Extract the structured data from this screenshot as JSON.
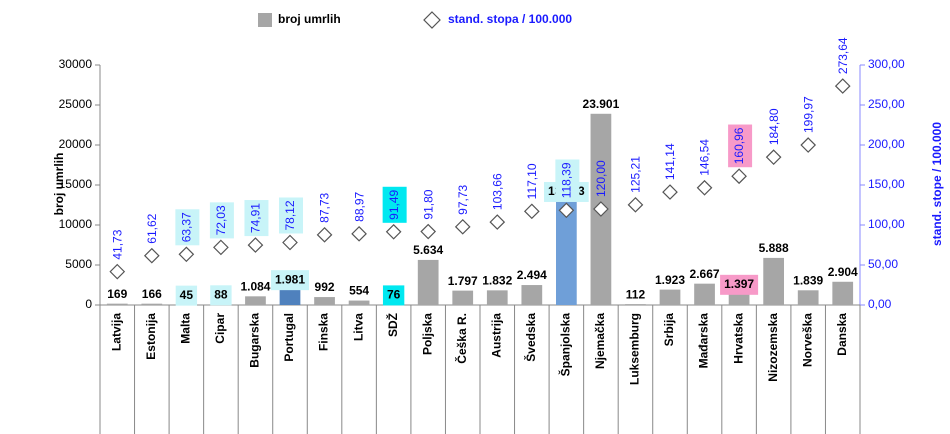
{
  "chart_data": {
    "type": "bar_line",
    "categories": [
      "Latvija",
      "Estonija",
      "Malta",
      "Cipar",
      "Bugarska",
      "Portugal",
      "Finska",
      "Litva",
      "SDŽ",
      "Poljska",
      "Češka R.",
      "Austrija",
      "Švedska",
      "Španjolska",
      "Njemačka",
      "Luksemburg",
      "Srbija",
      "Mađarska",
      "Hrvatska",
      "Nizozemska",
      "Norveška",
      "Danska"
    ],
    "series": [
      {
        "name": "broj umrlih",
        "color": "#a6a6a6",
        "bar_colors": [
          null,
          null,
          null,
          null,
          null,
          "#4f81bd",
          null,
          null,
          null,
          null,
          null,
          null,
          null,
          "#6f9fd8",
          null,
          null,
          null,
          null,
          null,
          null,
          null,
          null
        ],
        "label_highlights": [
          null,
          null,
          "#c8f4f8",
          "#c8f4f8",
          null,
          "#c8f4f8",
          null,
          null,
          "#00e8f0",
          null,
          null,
          null,
          null,
          "#c8f4f8",
          null,
          null,
          null,
          null,
          "#f79ac8",
          null,
          null,
          null
        ],
        "values": [
          169,
          166,
          45,
          88,
          1084,
          1981,
          992,
          554,
          76,
          5634,
          1797,
          1832,
          2494,
          13003,
          23901,
          112,
          1923,
          2667,
          1397,
          5888,
          1839,
          2904
        ],
        "value_labels": [
          "169",
          "166",
          "45",
          "88",
          "1.084",
          "1.981",
          "992",
          "554",
          "76",
          "5.634",
          "1.797",
          "1.832",
          "2.494",
          "13.003",
          "23.901",
          "112",
          "1.923",
          "2.667",
          "1.397",
          "5.888",
          "1.839",
          "2.904"
        ]
      },
      {
        "name": "stand. stopa / 100.000",
        "color": "#ffffff",
        "axis": "y2",
        "label_highlights": [
          null,
          null,
          "#c8f4f8",
          "#c8f4f8",
          "#c8f4f8",
          "#c8f4f8",
          null,
          null,
          "#00e8f0",
          null,
          null,
          null,
          null,
          "#c8f4f8",
          null,
          null,
          null,
          null,
          "#f79ac8",
          null,
          null,
          null
        ],
        "values": [
          41.73,
          61.62,
          63.37,
          72.03,
          74.91,
          78.12,
          87.73,
          88.97,
          91.49,
          91.8,
          97.73,
          103.66,
          117.1,
          118.39,
          120.0,
          125.21,
          141.14,
          146.54,
          160.96,
          184.8,
          199.97,
          273.64
        ],
        "value_labels": [
          "41,73",
          "61,62",
          "63,37",
          "72,03",
          "74,91",
          "78,12",
          "87,73",
          "88,97",
          "91,49",
          "91,80",
          "97,73",
          "103,66",
          "117,10",
          "118,39",
          "120,00",
          "125,21",
          "141,14",
          "146,54",
          "160,96",
          "184,80",
          "199,97",
          "273,64"
        ]
      }
    ],
    "ylabel": "broj umrlih",
    "y2label": "stand. stope / 100.000",
    "ylim": [
      0,
      30000
    ],
    "yticks": [
      0,
      5000,
      10000,
      15000,
      20000,
      25000,
      30000
    ],
    "y2lim": [
      0,
      300
    ],
    "y2ticks": [
      {
        "value": 0,
        "label": "0,00"
      },
      {
        "value": 50,
        "label": "50,00"
      },
      {
        "value": 100,
        "label": "100,00"
      },
      {
        "value": 150,
        "label": "150,00"
      },
      {
        "value": 200,
        "label": "200,00"
      },
      {
        "value": 250,
        "label": "250,00"
      },
      {
        "value": 300,
        "label": "300,00"
      }
    ],
    "legend": "top"
  }
}
